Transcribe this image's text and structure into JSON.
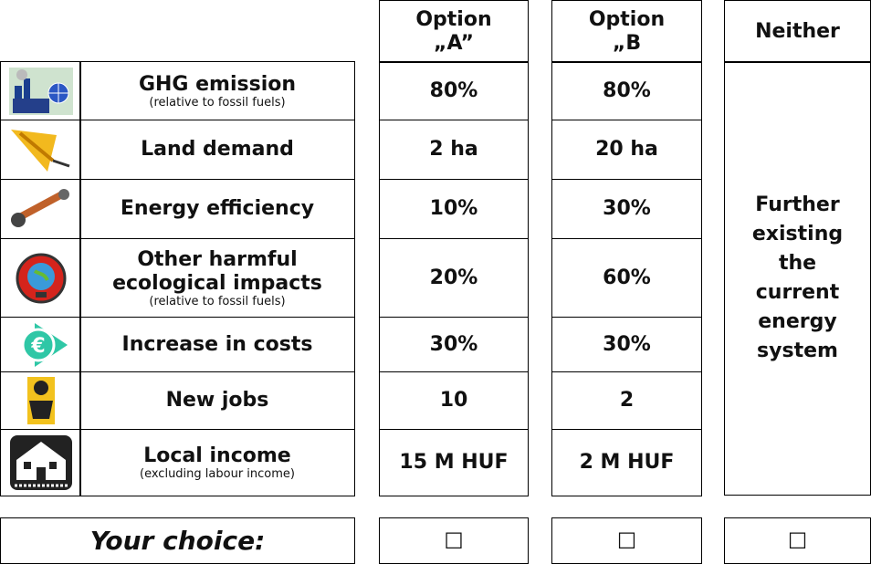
{
  "header": {
    "options": [
      "Option „A”",
      "Option „B",
      "Neither"
    ]
  },
  "rows": [
    {
      "attribute": "GHG emission",
      "note": "(relative to fossil fuels)",
      "a": "80%",
      "b": "80%"
    },
    {
      "attribute": "Land demand",
      "a": "2 ha",
      "b": "20 ha"
    },
    {
      "attribute": "Energy efficiency",
      "a": "10%",
      "b": "30%"
    },
    {
      "attribute": "Other harmful ecological impacts",
      "note": "(relative to fossil fuels)",
      "a": "20%",
      "b": "60%"
    },
    {
      "attribute": "Increase in costs",
      "a": "30%",
      "b": "30%"
    },
    {
      "attribute": "New jobs",
      "a": "10",
      "b": "2"
    },
    {
      "attribute": "Local income",
      "note": "(excluding labour income)",
      "a": "15 M HUF",
      "b": "2 M HUF"
    }
  ],
  "neither_text": "Further existing the current energy system",
  "choice": {
    "label": "Your choice:",
    "boxes": [
      "☐",
      "☐",
      "☐"
    ]
  }
}
